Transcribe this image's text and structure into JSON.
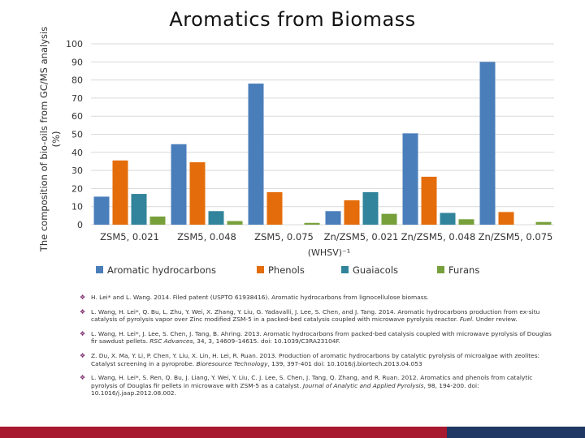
{
  "title": "Aromatics from Biomass",
  "chart_data": {
    "type": "bar",
    "categories": [
      "ZSM5, 0.021",
      "ZSM5, 0.048",
      "ZSM5, 0.075",
      "Zn/ZSM5, 0.021",
      "Zn/ZSM5, 0.048",
      "Zn/ZSM5, 0.075"
    ],
    "series": [
      {
        "name": "Aromatic hydrocarbons",
        "color": "#4a7ebb",
        "values": [
          15.5,
          44.5,
          78,
          7.5,
          50.5,
          90
        ]
      },
      {
        "name": "Phenols",
        "color": "#e46c0a",
        "values": [
          35.5,
          34.5,
          18,
          13.5,
          26.5,
          7
        ]
      },
      {
        "name": "Guaiacols",
        "color": "#31849b",
        "values": [
          17,
          7.5,
          0,
          18,
          6.5,
          0
        ]
      },
      {
        "name": "Furans",
        "color": "#77a03b",
        "values": [
          4.5,
          2,
          1,
          6,
          3,
          1.5
        ]
      }
    ],
    "ylabel": "The composition of bio-oils from GC/MS analysis (%)",
    "xlabel": "(WHSV)⁻¹",
    "ylim": [
      0,
      100
    ],
    "yticks": [
      0,
      10,
      20,
      30,
      40,
      50,
      60,
      70,
      80,
      90,
      100
    ],
    "grid": true,
    "legend": "bottom"
  },
  "references": [
    {
      "text": "H. Lei* and L. Wang. 2014. Filed patent (USPTO 61938416). Aromatic hydrocarbons from lignocellulose biomass.",
      "journal": "",
      "rest": ""
    },
    {
      "text": "L. Wang, H. Lei*, Q. Bu, L. Zhu, Y. Wei, X. Zhang, Y. Liu, G. Yadavalli, J. Lee, S. Chen, and J. Tang. 2014. Aromatic hydrocarbons production from ex-situ catalysis of pyrolysis vapor over Zinc modified ZSM-5 in a packed-bed catalysis coupled with microwave pyrolysis reactor.",
      "journal": "Fuel.",
      "rest": " Under review."
    },
    {
      "text": "L. Wang, H. Lei*, J. Lee, S. Chen, J. Tang, B. Ahring. 2013. Aromatic hydrocarbons from packed-bed catalysis coupled with microwave pyrolysis of Douglas fir sawdust pellets.",
      "journal": "RSC Advances",
      "rest": ", 34, 3, 14609–14615. doi: 10.1039/C3RA23104F."
    },
    {
      "text": "Z. Du, X. Ma, Y. Li, P. Chen, Y. Liu, X. Lin, H. Lei, R. Ruan. 2013. Production of aromatic hydrocarbons by catalytic pyrolysis of microalgae with zeolites: Catalyst screening in a pyroprobe.",
      "journal": "Bioresource Technology",
      "rest": ", 139, 397-401 doi: 10.1016/j.biortech.2013.04.053"
    },
    {
      "text": "L. Wang, H. Lei*, S. Ren, Q. Bu, J. Liang, Y. Wei, Y. Liu, C. J. Lee, S. Chen, J. Tang, Q. Zhang, and R. Ruan. 2012. Aromatics and phenols from catalytic pyrolysis of Douglas fir pellets in microwave with ZSM-5 as a catalyst.",
      "journal": "Journal of Analytic and Applied Pyrolysis",
      "rest": ", 98, 194-200. doi: 10.1016/j.jaap.2012.08.002."
    }
  ],
  "colors": {
    "footer_red": "#a6192e",
    "footer_navy": "#1f3864",
    "bullet": "#7a2a6b"
  }
}
